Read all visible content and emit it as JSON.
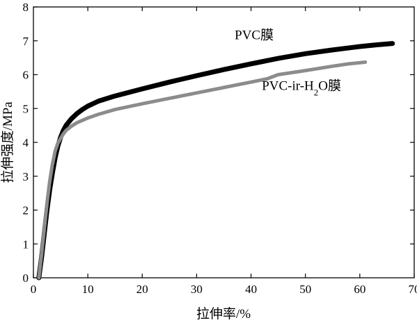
{
  "chart_data": {
    "type": "line",
    "title": "",
    "xlabel": "拉伸率/%",
    "ylabel": "拉伸强度/MPa",
    "xlim": [
      0,
      70
    ],
    "ylim": [
      0,
      8
    ],
    "xticks": [
      0,
      10,
      20,
      30,
      40,
      50,
      60,
      70
    ],
    "yticks": [
      0,
      1,
      2,
      3,
      4,
      5,
      6,
      7,
      8
    ],
    "grid": false,
    "legend": "none",
    "series": [
      {
        "name": "PVC膜",
        "label_parts": [
          "PVC膜"
        ],
        "color": "#000000",
        "points": [
          [
            1.0,
            0.0
          ],
          [
            1.5,
            0.6
          ],
          [
            2.0,
            1.3
          ],
          [
            2.5,
            2.0
          ],
          [
            3.0,
            2.6
          ],
          [
            3.5,
            3.1
          ],
          [
            4.0,
            3.55
          ],
          [
            4.5,
            3.9
          ],
          [
            5.0,
            4.15
          ],
          [
            5.5,
            4.35
          ],
          [
            6.0,
            4.5
          ],
          [
            7.0,
            4.7
          ],
          [
            8.0,
            4.85
          ],
          [
            9.0,
            4.97
          ],
          [
            10.0,
            5.07
          ],
          [
            12.0,
            5.22
          ],
          [
            15.0,
            5.37
          ],
          [
            20.0,
            5.58
          ],
          [
            25.0,
            5.78
          ],
          [
            30.0,
            5.97
          ],
          [
            35.0,
            6.15
          ],
          [
            40.0,
            6.32
          ],
          [
            45.0,
            6.48
          ],
          [
            50.0,
            6.62
          ],
          [
            55.0,
            6.73
          ],
          [
            60.0,
            6.83
          ],
          [
            63.0,
            6.88
          ],
          [
            66.0,
            6.92
          ]
        ]
      },
      {
        "name": "PVC-ir-H2O膜",
        "label_parts": [
          "PVC-ir-H",
          "2",
          "O膜"
        ],
        "color": "#8c8c8c",
        "points": [
          [
            1.0,
            0.0
          ],
          [
            1.5,
            0.7
          ],
          [
            2.0,
            1.45
          ],
          [
            2.5,
            2.2
          ],
          [
            3.0,
            2.85
          ],
          [
            3.5,
            3.35
          ],
          [
            4.0,
            3.75
          ],
          [
            4.5,
            3.98
          ],
          [
            5.0,
            4.12
          ],
          [
            5.5,
            4.25
          ],
          [
            6.0,
            4.35
          ],
          [
            7.0,
            4.48
          ],
          [
            8.0,
            4.58
          ],
          [
            10.0,
            4.72
          ],
          [
            12.0,
            4.83
          ],
          [
            15.0,
            4.97
          ],
          [
            20.0,
            5.14
          ],
          [
            25.0,
            5.3
          ],
          [
            30.0,
            5.46
          ],
          [
            35.0,
            5.62
          ],
          [
            40.0,
            5.78
          ],
          [
            43.0,
            5.88
          ],
          [
            45.0,
            6.0
          ],
          [
            50.0,
            6.12
          ],
          [
            55.0,
            6.25
          ],
          [
            58.0,
            6.32
          ],
          [
            61.0,
            6.37
          ]
        ]
      }
    ]
  }
}
